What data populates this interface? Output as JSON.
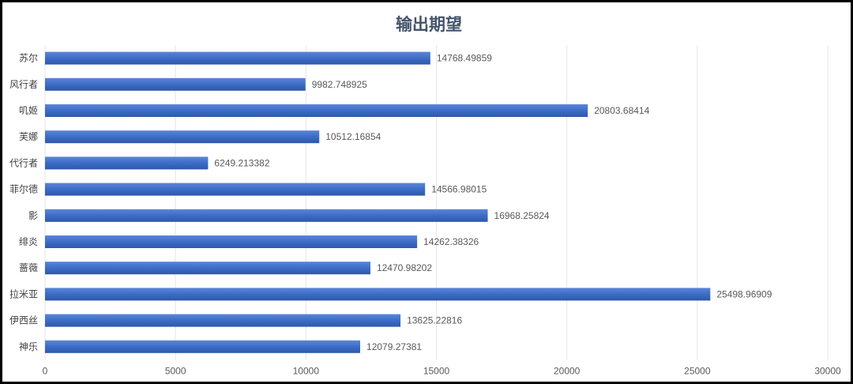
{
  "chart_data": {
    "type": "bar",
    "orientation": "horizontal",
    "title": "输出期望",
    "xlabel": "",
    "ylabel": "",
    "xlim": [
      0,
      30000
    ],
    "ticks": [
      "0",
      "5000",
      "10000",
      "15000",
      "20000",
      "25000",
      "30000"
    ],
    "grid": true,
    "bar_color": "#3d6cc7",
    "categories": [
      "苏尔",
      "风行者",
      "叽姬",
      "芙娜",
      "代行者",
      "菲尔德",
      "影",
      "绯炎",
      "蔷薇",
      "拉米亚",
      "伊西丝",
      "神乐"
    ],
    "values": [
      14768.49859,
      9982.748925,
      20803.68414,
      10512.16854,
      6249.213382,
      14566.98015,
      16968.25824,
      14262.38326,
      12470.98202,
      25498.96909,
      13625.22816,
      12079.27381
    ],
    "value_labels": [
      "14768.49859",
      "9982.748925",
      "20803.68414",
      "10512.16854",
      "6249.213382",
      "14566.98015",
      "16968.25824",
      "14262.38326",
      "12470.98202",
      "25498.96909",
      "13625.22816",
      "12079.27381"
    ]
  }
}
